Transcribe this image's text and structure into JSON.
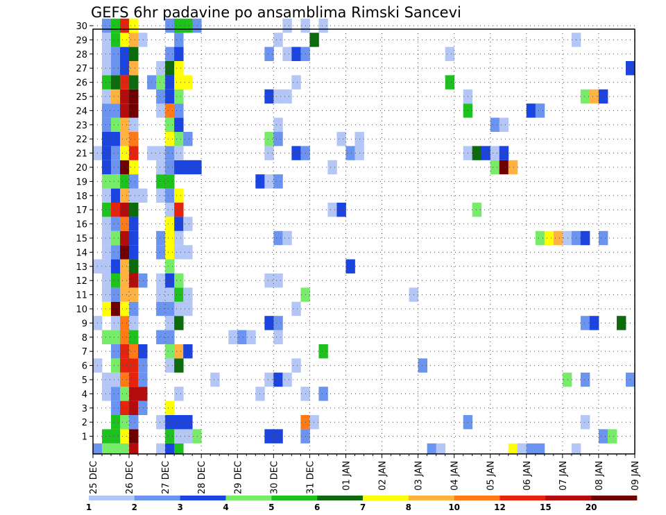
{
  "chart_data": {
    "type": "heatmap",
    "title": "GEFS 6hr padavine po ansamblima Rimski Sancevi",
    "xlabel": "",
    "ylabel": "",
    "x_tick_labels": [
      "25 DEC",
      "26 DEC",
      "27 DEC",
      "28 DEC",
      "29 DEC",
      "30 DEC",
      "31 DEC",
      "01 JAN",
      "02 JAN",
      "03 JAN",
      "04 JAN",
      "05 JAN",
      "06 JAN",
      "07 JAN",
      "08 JAN",
      "09 JAN"
    ],
    "x_range_days": [
      0,
      15
    ],
    "step_hours": 6,
    "y_tick_labels": [
      "1",
      "2",
      "3",
      "4",
      "5",
      "6",
      "7",
      "8",
      "9",
      "10",
      "11",
      "12",
      "13",
      "14",
      "15",
      "16",
      "17",
      "18",
      "19",
      "20",
      "21",
      "22",
      "23",
      "24",
      "25",
      "26",
      "27",
      "28",
      "29",
      "30"
    ],
    "y_range": [
      0,
      30
    ],
    "grid": "dotted",
    "colorbar": {
      "labels": [
        "1",
        "2",
        "3",
        "4",
        "5",
        "6",
        "7",
        "8",
        "10",
        "12",
        "15",
        "20"
      ],
      "colors": [
        "#b3c6f5",
        "#6b93f0",
        "#1c44e0",
        "#76ec68",
        "#1ec21e",
        "#0c6b0c",
        "#ffff00",
        "#ffb23f",
        "#ff7a14",
        "#e6240e",
        "#b40c0c",
        "#700000"
      ]
    },
    "cells": {
      "30": [
        [
          1,
          2
        ],
        [
          2,
          5
        ],
        [
          3,
          10
        ],
        [
          4,
          7
        ],
        [
          8,
          2
        ],
        [
          9,
          5
        ],
        [
          10,
          5
        ],
        [
          11,
          2
        ],
        [
          21,
          1
        ],
        [
          23,
          1
        ],
        [
          25,
          1
        ]
      ],
      "29": [
        [
          1,
          1
        ],
        [
          2,
          5
        ],
        [
          3,
          7
        ],
        [
          4,
          8
        ],
        [
          5,
          1
        ],
        [
          9,
          2
        ],
        [
          20,
          1
        ],
        [
          24,
          6
        ],
        [
          53,
          1
        ]
      ],
      "28": [
        [
          1,
          1
        ],
        [
          2,
          2
        ],
        [
          3,
          3
        ],
        [
          4,
          6
        ],
        [
          8,
          2
        ],
        [
          9,
          3
        ],
        [
          19,
          2
        ],
        [
          21,
          1
        ],
        [
          22,
          3
        ],
        [
          23,
          2
        ],
        [
          39,
          1
        ]
      ],
      "27": [
        [
          1,
          1
        ],
        [
          2,
          2
        ],
        [
          3,
          3
        ],
        [
          4,
          8
        ],
        [
          7,
          1
        ],
        [
          8,
          6
        ],
        [
          9,
          7
        ],
        [
          59,
          3
        ]
      ],
      "26": [
        [
          1,
          5
        ],
        [
          2,
          6
        ],
        [
          3,
          10
        ],
        [
          4,
          6
        ],
        [
          6,
          2
        ],
        [
          7,
          4
        ],
        [
          8,
          3
        ],
        [
          9,
          7
        ],
        [
          10,
          7
        ],
        [
          22,
          1
        ],
        [
          39,
          5
        ]
      ],
      "25": [
        [
          1,
          1
        ],
        [
          2,
          8
        ],
        [
          3,
          11
        ],
        [
          4,
          12
        ],
        [
          7,
          2
        ],
        [
          8,
          3
        ],
        [
          9,
          4
        ],
        [
          19,
          3
        ],
        [
          20,
          1
        ],
        [
          21,
          1
        ],
        [
          41,
          1
        ],
        [
          54,
          4
        ],
        [
          55,
          8
        ],
        [
          56,
          3
        ]
      ],
      "24": [
        [
          1,
          2
        ],
        [
          2,
          2
        ],
        [
          3,
          11
        ],
        [
          4,
          12
        ],
        [
          7,
          1
        ],
        [
          8,
          9
        ],
        [
          9,
          2
        ],
        [
          41,
          5
        ],
        [
          48,
          3
        ],
        [
          49,
          2
        ]
      ],
      "23": [
        [
          1,
          2
        ],
        [
          2,
          4
        ],
        [
          3,
          8
        ],
        [
          4,
          1
        ],
        [
          8,
          4
        ],
        [
          9,
          3
        ],
        [
          20,
          1
        ],
        [
          44,
          2
        ],
        [
          45,
          1
        ]
      ],
      "22": [
        [
          1,
          3
        ],
        [
          2,
          3
        ],
        [
          3,
          8
        ],
        [
          4,
          9
        ],
        [
          8,
          7
        ],
        [
          9,
          4
        ],
        [
          10,
          2
        ],
        [
          19,
          4
        ],
        [
          20,
          2
        ],
        [
          27,
          1
        ],
        [
          29,
          1
        ]
      ],
      "21": [
        [
          0,
          1
        ],
        [
          1,
          3
        ],
        [
          2,
          2
        ],
        [
          3,
          7
        ],
        [
          4,
          10
        ],
        [
          6,
          1
        ],
        [
          7,
          1
        ],
        [
          8,
          2
        ],
        [
          9,
          1
        ],
        [
          19,
          1
        ],
        [
          22,
          3
        ],
        [
          23,
          2
        ],
        [
          28,
          2
        ],
        [
          29,
          1
        ],
        [
          41,
          1
        ],
        [
          42,
          6
        ],
        [
          43,
          3
        ],
        [
          44,
          1
        ],
        [
          45,
          3
        ]
      ],
      "20": [
        [
          1,
          3
        ],
        [
          2,
          2
        ],
        [
          3,
          12
        ],
        [
          4,
          7
        ],
        [
          7,
          1
        ],
        [
          8,
          2
        ],
        [
          9,
          3
        ],
        [
          10,
          3
        ],
        [
          11,
          3
        ],
        [
          26,
          1
        ],
        [
          44,
          4
        ],
        [
          45,
          12
        ],
        [
          46,
          8
        ]
      ],
      "19": [
        [
          1,
          4
        ],
        [
          2,
          4
        ],
        [
          3,
          5
        ],
        [
          4,
          2
        ],
        [
          7,
          5
        ],
        [
          8,
          5
        ],
        [
          18,
          3
        ],
        [
          19,
          1
        ],
        [
          20,
          2
        ]
      ],
      "18": [
        [
          1,
          1
        ],
        [
          2,
          3
        ],
        [
          3,
          8
        ],
        [
          4,
          1
        ],
        [
          5,
          1
        ],
        [
          7,
          1
        ],
        [
          8,
          2
        ],
        [
          9,
          7
        ]
      ],
      "17": [
        [
          1,
          5
        ],
        [
          2,
          10
        ],
        [
          3,
          11
        ],
        [
          4,
          6
        ],
        [
          8,
          1
        ],
        [
          9,
          10
        ],
        [
          26,
          1
        ],
        [
          27,
          3
        ],
        [
          42,
          4
        ]
      ],
      "16": [
        [
          1,
          1
        ],
        [
          2,
          2
        ],
        [
          3,
          9
        ],
        [
          4,
          3
        ],
        [
          8,
          7
        ],
        [
          9,
          3
        ],
        [
          10,
          1
        ]
      ],
      "15": [
        [
          1,
          1
        ],
        [
          2,
          4
        ],
        [
          3,
          11
        ],
        [
          4,
          3
        ],
        [
          7,
          2
        ],
        [
          8,
          7
        ],
        [
          9,
          1
        ],
        [
          20,
          2
        ],
        [
          21,
          1
        ],
        [
          49,
          4
        ],
        [
          50,
          7
        ],
        [
          51,
          8
        ],
        [
          52,
          1
        ],
        [
          53,
          2
        ],
        [
          54,
          3
        ],
        [
          56,
          2
        ]
      ],
      "14": [
        [
          1,
          1
        ],
        [
          2,
          2
        ],
        [
          3,
          12
        ],
        [
          4,
          3
        ],
        [
          7,
          2
        ],
        [
          8,
          7
        ],
        [
          9,
          1
        ],
        [
          10,
          1
        ]
      ],
      "13": [
        [
          0,
          1
        ],
        [
          1,
          1
        ],
        [
          2,
          3
        ],
        [
          3,
          8
        ],
        [
          4,
          6
        ],
        [
          8,
          4
        ],
        [
          28,
          3
        ]
      ],
      "12": [
        [
          1,
          1
        ],
        [
          2,
          5
        ],
        [
          3,
          8
        ],
        [
          4,
          11
        ],
        [
          5,
          2
        ],
        [
          7,
          1
        ],
        [
          8,
          3
        ],
        [
          9,
          4
        ],
        [
          19,
          1
        ],
        [
          20,
          1
        ]
      ],
      "11": [
        [
          1,
          1
        ],
        [
          2,
          2
        ],
        [
          3,
          8
        ],
        [
          4,
          8
        ],
        [
          7,
          1
        ],
        [
          8,
          1
        ],
        [
          9,
          5
        ],
        [
          10,
          1
        ],
        [
          23,
          4
        ],
        [
          35,
          1
        ]
      ],
      "10": [
        [
          1,
          7
        ],
        [
          2,
          12
        ],
        [
          3,
          7
        ],
        [
          4,
          2
        ],
        [
          7,
          2
        ],
        [
          8,
          2
        ],
        [
          9,
          1
        ],
        [
          10,
          1
        ],
        [
          22,
          1
        ]
      ],
      "9": [
        [
          0,
          1
        ],
        [
          2,
          1
        ],
        [
          3,
          9
        ],
        [
          4,
          1
        ],
        [
          8,
          1
        ],
        [
          9,
          6
        ],
        [
          19,
          3
        ],
        [
          20,
          2
        ],
        [
          54,
          2
        ],
        [
          55,
          3
        ],
        [
          58,
          6
        ]
      ],
      "8": [
        [
          1,
          4
        ],
        [
          2,
          4
        ],
        [
          3,
          9
        ],
        [
          4,
          5
        ],
        [
          7,
          2
        ],
        [
          8,
          2
        ],
        [
          15,
          1
        ],
        [
          16,
          2
        ],
        [
          17,
          1
        ],
        [
          20,
          1
        ]
      ],
      "7": [
        [
          2,
          2
        ],
        [
          3,
          10
        ],
        [
          4,
          9
        ],
        [
          5,
          3
        ],
        [
          8,
          4
        ],
        [
          9,
          8
        ],
        [
          10,
          3
        ],
        [
          25,
          5
        ]
      ],
      "6": [
        [
          0,
          1
        ],
        [
          2,
          4
        ],
        [
          3,
          10
        ],
        [
          4,
          10
        ],
        [
          5,
          2
        ],
        [
          8,
          1
        ],
        [
          9,
          6
        ],
        [
          22,
          1
        ],
        [
          36,
          2
        ]
      ],
      "5": [
        [
          1,
          1
        ],
        [
          2,
          1
        ],
        [
          3,
          9
        ],
        [
          4,
          10
        ],
        [
          5,
          2
        ],
        [
          13,
          1
        ],
        [
          19,
          1
        ],
        [
          20,
          3
        ],
        [
          21,
          1
        ],
        [
          52,
          4
        ],
        [
          54,
          2
        ],
        [
          59,
          2
        ]
      ],
      "4": [
        [
          1,
          1
        ],
        [
          2,
          2
        ],
        [
          3,
          4
        ],
        [
          4,
          11
        ],
        [
          5,
          11
        ],
        [
          9,
          1
        ],
        [
          18,
          1
        ],
        [
          23,
          1
        ],
        [
          25,
          2
        ]
      ],
      "3": [
        [
          2,
          2
        ],
        [
          3,
          10
        ],
        [
          4,
          11
        ],
        [
          5,
          2
        ],
        [
          8,
          7
        ]
      ],
      "2": [
        [
          2,
          5
        ],
        [
          3,
          4
        ],
        [
          4,
          2
        ],
        [
          7,
          1
        ],
        [
          8,
          3
        ],
        [
          9,
          3
        ],
        [
          10,
          3
        ],
        [
          23,
          9
        ],
        [
          24,
          1
        ],
        [
          41,
          2
        ],
        [
          54,
          1
        ]
      ],
      "1": [
        [
          1,
          5
        ],
        [
          2,
          5
        ],
        [
          3,
          7
        ],
        [
          4,
          12
        ],
        [
          8,
          5
        ],
        [
          9,
          1
        ],
        [
          10,
          1
        ],
        [
          11,
          4
        ],
        [
          19,
          3
        ],
        [
          20,
          3
        ],
        [
          23,
          2
        ],
        [
          56,
          2
        ],
        [
          57,
          4
        ]
      ],
      "0": [
        [
          0,
          2
        ],
        [
          1,
          4
        ],
        [
          2,
          4
        ],
        [
          3,
          4
        ],
        [
          4,
          11
        ],
        [
          7,
          1
        ],
        [
          8,
          3
        ],
        [
          9,
          5
        ],
        [
          37,
          2
        ],
        [
          38,
          1
        ],
        [
          46,
          7
        ],
        [
          47,
          1
        ],
        [
          48,
          2
        ],
        [
          49,
          2
        ],
        [
          53,
          1
        ]
      ]
    }
  }
}
